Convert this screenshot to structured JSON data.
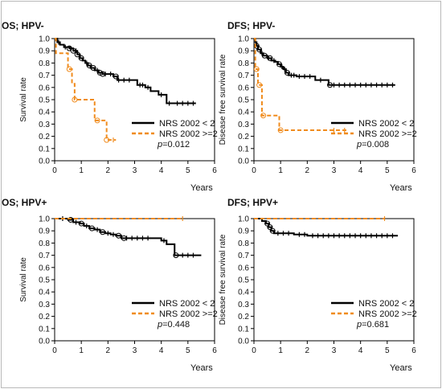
{
  "figure": {
    "series_names": [
      "NRS 2002 < 2",
      "NRS 2002 >=2"
    ],
    "colors": {
      "low": "#000000",
      "high": "#f08c1e",
      "axis": "#000000"
    },
    "x_unit": "Years",
    "p_prefix": "p",
    "p_symbol": "="
  },
  "chart_data": [
    {
      "type": "line",
      "title": "OS; HPV-",
      "xlabel": "Years",
      "ylabel": "Survival rate",
      "xlim": [
        0,
        6
      ],
      "ylim": [
        0,
        1
      ],
      "xticks": [
        "0",
        "1",
        "2",
        "3",
        "4",
        "5",
        "6"
      ],
      "yticks": [
        "0.0",
        "0.1",
        "0.2",
        "0.3",
        "0.4",
        "0.5",
        "0.6",
        "0.7",
        "0.8",
        "0.9",
        "1.0"
      ],
      "p_value": "0.012",
      "legend": "bottom-right",
      "series": [
        {
          "name": "NRS 2002 < 2",
          "style": "solid",
          "points": [
            [
              0,
              1.0
            ],
            [
              0.1,
              0.97
            ],
            [
              0.2,
              0.95
            ],
            [
              0.35,
              0.93
            ],
            [
              0.55,
              0.92
            ],
            [
              0.7,
              0.9
            ],
            [
              0.85,
              0.87
            ],
            [
              0.95,
              0.84
            ],
            [
              1.05,
              0.82
            ],
            [
              1.15,
              0.8
            ],
            [
              1.25,
              0.78
            ],
            [
              1.35,
              0.76
            ],
            [
              1.5,
              0.74
            ],
            [
              1.65,
              0.72
            ],
            [
              1.8,
              0.71
            ],
            [
              2.2,
              0.69
            ],
            [
              2.35,
              0.66
            ],
            [
              2.7,
              0.66
            ],
            [
              3.1,
              0.62
            ],
            [
              3.4,
              0.6
            ],
            [
              3.6,
              0.57
            ],
            [
              3.9,
              0.54
            ],
            [
              4.2,
              0.47
            ],
            [
              4.5,
              0.47
            ],
            [
              5.3,
              0.47
            ]
          ],
          "censors": [
            0.15,
            0.4,
            0.6,
            0.8,
            1.2,
            1.6,
            1.9,
            2.1,
            2.4,
            2.6,
            2.8,
            3.2,
            3.3,
            3.5,
            4.0,
            4.3,
            4.6,
            4.8,
            5.0,
            5.2
          ],
          "circles": [
            0.55,
            0.7,
            0.85,
            1.0,
            1.3,
            1.45,
            1.7,
            1.8,
            2.3
          ]
        },
        {
          "name": "NRS 2002 >=2",
          "style": "dashed",
          "points": [
            [
              0,
              1.0
            ],
            [
              0.05,
              0.88
            ],
            [
              0.5,
              0.75
            ],
            [
              0.65,
              0.63
            ],
            [
              0.75,
              0.5
            ],
            [
              1.5,
              0.33
            ],
            [
              1.95,
              0.17
            ],
            [
              2.3,
              0.17
            ]
          ],
          "censors": [
            2.2
          ],
          "circles": [
            0.55,
            0.75,
            1.6,
            1.95
          ]
        }
      ]
    },
    {
      "type": "line",
      "title": "DFS; HPV-",
      "xlabel": "Years",
      "ylabel": "Disease free survival rate",
      "xlim": [
        0,
        6
      ],
      "ylim": [
        0,
        1
      ],
      "xticks": [
        "0",
        "1",
        "2",
        "3",
        "4",
        "5",
        "6"
      ],
      "yticks": [
        "0.0",
        "0.1",
        "0.2",
        "0.3",
        "0.4",
        "0.5",
        "0.6",
        "0.7",
        "0.8",
        "0.9",
        "1.0"
      ],
      "p_value": "0.008",
      "legend": "bottom-right",
      "series": [
        {
          "name": "NRS 2002 < 2",
          "style": "solid",
          "points": [
            [
              0,
              1.0
            ],
            [
              0.05,
              0.97
            ],
            [
              0.1,
              0.94
            ],
            [
              0.15,
              0.91
            ],
            [
              0.25,
              0.88
            ],
            [
              0.35,
              0.86
            ],
            [
              0.5,
              0.84
            ],
            [
              0.65,
              0.82
            ],
            [
              0.8,
              0.81
            ],
            [
              0.9,
              0.79
            ],
            [
              1.0,
              0.77
            ],
            [
              1.1,
              0.75
            ],
            [
              1.2,
              0.72
            ],
            [
              1.3,
              0.7
            ],
            [
              1.6,
              0.69
            ],
            [
              1.8,
              0.69
            ],
            [
              2.3,
              0.66
            ],
            [
              2.8,
              0.62
            ],
            [
              5.3,
              0.62
            ]
          ],
          "censors": [
            0.3,
            0.55,
            0.75,
            1.05,
            1.15,
            1.4,
            1.5,
            1.7,
            1.9,
            2.1,
            2.5,
            3.0,
            3.2,
            3.4,
            3.6,
            3.8,
            4.0,
            4.2,
            4.4,
            4.6,
            4.8,
            5.0,
            5.2
          ],
          "circles": [
            0.1,
            0.2,
            0.4,
            0.6,
            0.95,
            1.25,
            2.85
          ]
        },
        {
          "name": "NRS 2002 >=2",
          "style": "dashed",
          "points": [
            [
              0,
              1.0
            ],
            [
              0.05,
              0.75
            ],
            [
              0.15,
              0.62
            ],
            [
              0.3,
              0.37
            ],
            [
              0.95,
              0.25
            ],
            [
              3.5,
              0.25
            ]
          ],
          "censors": [
            3.0,
            3.4
          ],
          "circles": [
            0.1,
            0.2,
            0.35,
            1.0
          ]
        }
      ]
    },
    {
      "type": "line",
      "title": "OS; HPV+",
      "xlabel": "Years",
      "ylabel": "Survival rate",
      "xlim": [
        0,
        6
      ],
      "ylim": [
        0,
        1
      ],
      "xticks": [
        "0",
        "1",
        "2",
        "3",
        "4",
        "5",
        "6"
      ],
      "yticks": [
        "0.0",
        "0.1",
        "0.2",
        "0.3",
        "0.4",
        "0.5",
        "0.6",
        "0.7",
        "0.8",
        "0.9",
        "1.0"
      ],
      "p_value": "0.448",
      "legend": "bottom-right",
      "series": [
        {
          "name": "NRS 2002 < 2",
          "style": "solid",
          "points": [
            [
              0,
              1.0
            ],
            [
              0.5,
              0.99
            ],
            [
              0.7,
              0.97
            ],
            [
              0.95,
              0.96
            ],
            [
              1.1,
              0.94
            ],
            [
              1.3,
              0.92
            ],
            [
              1.5,
              0.91
            ],
            [
              1.7,
              0.89
            ],
            [
              1.9,
              0.88
            ],
            [
              2.1,
              0.87
            ],
            [
              2.3,
              0.86
            ],
            [
              2.5,
              0.84
            ],
            [
              3.7,
              0.84
            ],
            [
              4.0,
              0.82
            ],
            [
              4.2,
              0.79
            ],
            [
              4.5,
              0.7
            ],
            [
              5.5,
              0.7
            ]
          ],
          "censors": [
            0.3,
            0.8,
            1.2,
            1.6,
            2.0,
            2.2,
            2.7,
            2.9,
            3.1,
            3.3,
            3.5,
            4.1,
            4.8,
            5.0,
            5.2
          ],
          "circles": [
            0.6,
            1.0,
            1.4,
            1.8,
            2.4,
            2.6,
            4.55
          ]
        },
        {
          "name": "NRS 2002 >=2",
          "style": "dashed",
          "points": [
            [
              0,
              1.0
            ],
            [
              4.8,
              1.0
            ]
          ],
          "censors": [
            4.8
          ],
          "circles": []
        }
      ]
    },
    {
      "type": "line",
      "title": "DFS; HPV+",
      "xlabel": "Years",
      "ylabel": "Disease free survival rate",
      "xlim": [
        0,
        6
      ],
      "ylim": [
        0,
        1
      ],
      "xticks": [
        "0",
        "1",
        "2",
        "3",
        "4",
        "5",
        "6"
      ],
      "yticks": [
        "0.0",
        "0.1",
        "0.2",
        "0.3",
        "0.4",
        "0.5",
        "0.6",
        "0.7",
        "0.8",
        "0.9",
        "1.0"
      ],
      "p_value": "0.681",
      "legend": "bottom-right",
      "series": [
        {
          "name": "NRS 2002 < 2",
          "style": "solid",
          "points": [
            [
              0,
              1.0
            ],
            [
              0.3,
              0.98
            ],
            [
              0.45,
              0.96
            ],
            [
              0.55,
              0.93
            ],
            [
              0.65,
              0.9
            ],
            [
              0.75,
              0.88
            ],
            [
              1.2,
              0.88
            ],
            [
              1.5,
              0.87
            ],
            [
              2.0,
              0.86
            ],
            [
              5.4,
              0.86
            ]
          ],
          "censors": [
            0.9,
            1.1,
            1.3,
            1.7,
            1.9,
            2.2,
            2.4,
            2.6,
            2.8,
            3.0,
            3.2,
            3.4,
            3.6,
            3.8,
            4.0,
            4.2,
            4.4,
            4.6,
            4.8,
            5.0,
            5.2
          ],
          "circles": [
            0.5,
            0.6,
            0.7
          ]
        },
        {
          "name": "NRS 2002 >=2",
          "style": "dashed",
          "points": [
            [
              0,
              1.0
            ],
            [
              4.9,
              1.0
            ]
          ],
          "censors": [
            4.9
          ],
          "circles": []
        }
      ]
    }
  ]
}
